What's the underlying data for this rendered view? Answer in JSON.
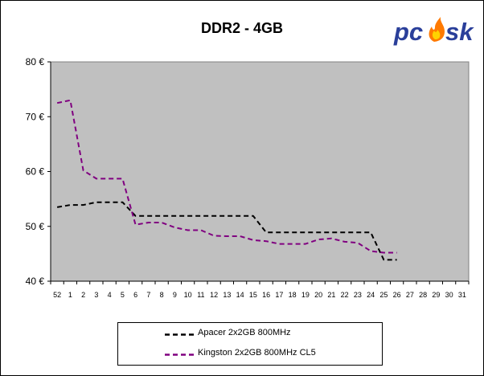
{
  "chart_data": {
    "type": "line",
    "title": "DDR2 - 4GB",
    "xlabel": "",
    "ylabel": "",
    "categories": [
      "52",
      "1",
      "2",
      "3",
      "4",
      "5",
      "6",
      "7",
      "8",
      "9",
      "10",
      "11",
      "12",
      "13",
      "14",
      "15",
      "16",
      "17",
      "18",
      "19",
      "20",
      "21",
      "22",
      "23",
      "24",
      "25",
      "26",
      "27",
      "28",
      "29",
      "30",
      "31"
    ],
    "ylim": [
      40,
      80
    ],
    "yticks": [
      40,
      50,
      60,
      70,
      80
    ],
    "ytick_labels": [
      "40 €",
      "50 €",
      "60 €",
      "70 €",
      "80 €"
    ],
    "grid": false,
    "background": "#c0c0c0",
    "legend_position": "bottom",
    "series": [
      {
        "name": "Apacer 2x2GB 800MHz",
        "color": "#000000",
        "style": "dashed",
        "values": [
          53.5,
          53.9,
          53.9,
          54.4,
          54.4,
          54.4,
          51.9,
          51.9,
          51.9,
          51.9,
          51.9,
          51.9,
          51.9,
          51.9,
          51.9,
          51.9,
          48.9,
          48.9,
          48.9,
          48.9,
          48.9,
          48.9,
          48.9,
          48.9,
          48.9,
          43.9,
          43.9,
          null,
          null,
          null,
          null,
          null
        ]
      },
      {
        "name": "Kingston 2x2GB 800MHz CL5",
        "color": "#800080",
        "style": "dashed",
        "values": [
          72.5,
          73.0,
          60.2,
          58.7,
          58.7,
          58.7,
          50.3,
          50.7,
          50.7,
          49.8,
          49.3,
          49.3,
          48.3,
          48.2,
          48.2,
          47.5,
          47.3,
          46.8,
          46.8,
          46.8,
          47.6,
          47.8,
          47.2,
          47.0,
          45.5,
          45.2,
          45.2,
          null,
          null,
          null,
          null,
          null
        ]
      }
    ]
  },
  "logo": {
    "text": "pcask"
  }
}
